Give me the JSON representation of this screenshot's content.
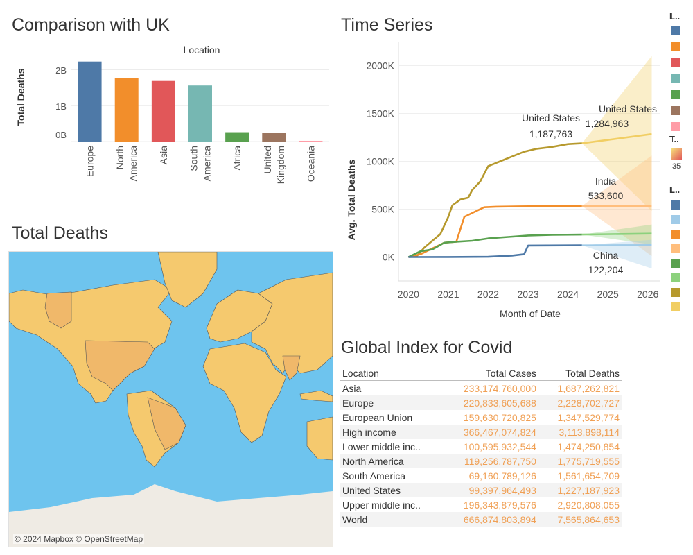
{
  "comparison": {
    "title": "Comparison with  UK",
    "header": "Location",
    "y_label": "Total Deaths",
    "y_ticks": [
      "2B",
      "1B",
      "0B"
    ]
  },
  "timeseries": {
    "title": "Time Series",
    "y_label": "Avg. Total Deaths",
    "x_label": "Month of Date",
    "y_ticks": [
      "2000K",
      "1500K",
      "1000K",
      "500K",
      "0K"
    ],
    "x_ticks": [
      "2020",
      "2021",
      "2022",
      "2023",
      "2024",
      "2025",
      "2026"
    ],
    "annotations": [
      {
        "name": "United States",
        "value": "1,187,763"
      },
      {
        "name": "United States",
        "value": "1,284,963"
      },
      {
        "name": "India",
        "value": "533,600"
      },
      {
        "name": "China",
        "value": "122,204"
      }
    ]
  },
  "map": {
    "title": "Total Deaths",
    "attribution": "© 2024 Mapbox © OpenStreetMap"
  },
  "table": {
    "title": "Global Index for Covid",
    "columns": [
      "Location",
      "Total Cases",
      "Total Deaths"
    ],
    "rows": [
      [
        "Asia",
        "233,174,760,000",
        "1,687,262,821"
      ],
      [
        "Europe",
        "220,833,605,688",
        "2,228,702,727"
      ],
      [
        "European Union",
        "159,630,720,825",
        "1,347,529,774"
      ],
      [
        "High income",
        "366,467,074,824",
        "3,113,898,114"
      ],
      [
        "Lower middle inc..",
        "100,595,932,544",
        "1,474,250,854"
      ],
      [
        "North America",
        "119,256,787,750",
        "1,775,719,555"
      ],
      [
        "South America",
        "69,160,789,126",
        "1,561,654,709"
      ],
      [
        "United States",
        "99,397,964,493",
        "1,227,187,923"
      ],
      [
        "Upper middle inc..",
        "196,343,879,576",
        "2,920,808,055"
      ],
      [
        "World",
        "666,874,803,894",
        "7,565,864,653"
      ]
    ]
  },
  "legends": {
    "location_head": "L..",
    "location_colors": [
      "#4e79a7",
      "#f28e2b",
      "#e15759",
      "#76b7b2",
      "#59a14f",
      "#9c755f",
      "#ff9da7"
    ],
    "gradient_head": "T..",
    "gradient_label": "35",
    "trend_head": "L..",
    "trend_colors": [
      "#4e79a7",
      "#a0cbe8",
      "#f28e2b",
      "#ffbe7d",
      "#59a14f",
      "#8cd17d",
      "#b6992d",
      "#f1ce63"
    ]
  },
  "chart_data": [
    {
      "type": "bar",
      "title": "Comparison with  UK",
      "xlabel": "Location",
      "ylabel": "Total Deaths",
      "ylim": [
        0,
        2300000000
      ],
      "categories": [
        "Europe",
        "North America",
        "Asia",
        "South America",
        "Africa",
        "United Kingdom",
        "Oceania"
      ],
      "category_lines": [
        [
          "Europe"
        ],
        [
          "North",
          "America"
        ],
        [
          "Asia"
        ],
        [
          "South",
          "America"
        ],
        [
          "Africa"
        ],
        [
          "United",
          "Kingdom"
        ],
        [
          "Oceania"
        ]
      ],
      "values": [
        2228702727,
        1775719555,
        1687262821,
        1561654709,
        260000000,
        235000000,
        20000000
      ],
      "colors": [
        "#4e79a7",
        "#f28e2b",
        "#e15759",
        "#76b7b2",
        "#59a14f",
        "#9c755f",
        "#ff9da7"
      ]
    },
    {
      "type": "line",
      "title": "Time Series",
      "xlabel": "Month of Date",
      "ylabel": "Avg. Total Deaths",
      "ylim": [
        -250000,
        2250000
      ],
      "xlim": [
        2019.75,
        2026.3
      ],
      "series": [
        {
          "name": "United States",
          "color": "#b6992d",
          "forecast_color": "#f1ce63",
          "x": [
            2020.0,
            2020.2,
            2020.4,
            2020.6,
            2020.8,
            2021.0,
            2021.1,
            2021.3,
            2021.5,
            2021.6,
            2021.8,
            2022.0,
            2022.3,
            2022.6,
            2022.9,
            2023.2,
            2023.6,
            2024.0,
            2024.35
          ],
          "y": [
            0,
            5000,
            100000,
            170000,
            240000,
            420000,
            540000,
            600000,
            620000,
            700000,
            790000,
            950000,
            1000000,
            1050000,
            1100000,
            1130000,
            1150000,
            1180000,
            1187763
          ],
          "forecast_x": [
            2024.35,
            2026.1
          ],
          "forecast_y": [
            1187763,
            1284963
          ],
          "band_upper": [
            1187763,
            2100000
          ],
          "band_lower": [
            1187763,
            480000
          ]
        },
        {
          "name": "India",
          "color": "#f28e2b",
          "forecast_color": "#ffbe7d",
          "x": [
            2020.0,
            2020.3,
            2020.6,
            2020.9,
            2021.2,
            2021.4,
            2021.6,
            2021.9,
            2022.2,
            2022.8,
            2023.4,
            2024.35
          ],
          "y": [
            0,
            30000,
            90000,
            150000,
            160000,
            420000,
            460000,
            520000,
            526000,
            530000,
            532000,
            533600
          ],
          "forecast_x": [
            2024.35,
            2026.1
          ],
          "forecast_y": [
            533600,
            533600
          ],
          "band_upper": [
            533600,
            1060000
          ],
          "band_lower": [
            533600,
            10000
          ]
        },
        {
          "name": "",
          "color": "#59a14f",
          "forecast_color": "#8cd17d",
          "x": [
            2020.0,
            2020.3,
            2020.6,
            2020.9,
            2021.2,
            2021.6,
            2022.0,
            2022.5,
            2023.0,
            2023.6,
            2024.35
          ],
          "y": [
            0,
            60000,
            80000,
            150000,
            160000,
            170000,
            195000,
            210000,
            225000,
            232000,
            235000
          ],
          "forecast_x": [
            2024.35,
            2026.1
          ],
          "forecast_y": [
            235000,
            245000
          ],
          "band_upper": [
            235000,
            340000
          ],
          "band_lower": [
            235000,
            130000
          ]
        },
        {
          "name": "China",
          "color": "#4e79a7",
          "forecast_color": "#a0cbe8",
          "x": [
            2020.0,
            2021.0,
            2022.0,
            2022.6,
            2022.9,
            2023.0,
            2023.5,
            2024.35
          ],
          "y": [
            0,
            1000,
            3000,
            15000,
            30000,
            120000,
            121000,
            122204
          ],
          "forecast_x": [
            2024.35,
            2026.1
          ],
          "forecast_y": [
            122204,
            125000
          ],
          "band_upper": [
            122204,
            180000
          ],
          "band_lower": [
            122204,
            -120000
          ]
        }
      ]
    }
  ]
}
